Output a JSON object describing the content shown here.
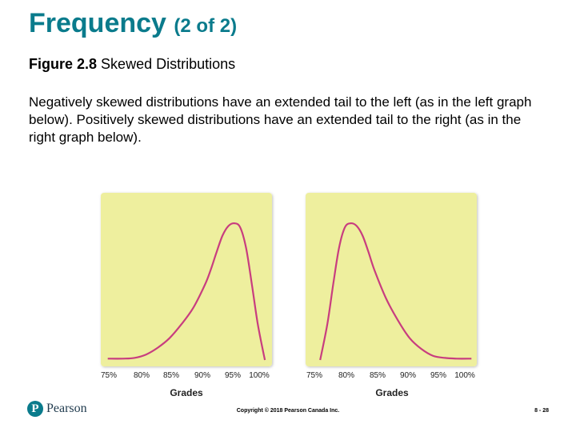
{
  "slide": {
    "title": "Frequency",
    "title_suffix": "(2 of 2)",
    "figure_label": "Figure 2.8",
    "figure_title": "Skewed Distributions",
    "body": "Negatively skewed distributions have an extended tail to the left (as in the left graph below). Positively skewed distributions have an extended tail to the right (as in the right graph below)."
  },
  "colors": {
    "title": "#0a7b8c",
    "panel": "#eeef9e",
    "curve": "#c83d7f"
  },
  "chart_data": [
    {
      "type": "line",
      "xlabel": "Grades",
      "x_ticks": [
        "75%",
        "80%",
        "85%",
        "90%",
        "95%",
        "100%"
      ],
      "xlim": [
        73,
        101
      ],
      "ylim": [
        0,
        1.1
      ],
      "series": [
        {
          "x": [
            73.5,
            76,
            78,
            80,
            82,
            84,
            86,
            88,
            90,
            91,
            92,
            93,
            94,
            95,
            96,
            97,
            98,
            99,
            100.2
          ],
          "y": [
            0.01,
            0.01,
            0.015,
            0.04,
            0.09,
            0.16,
            0.26,
            0.38,
            0.55,
            0.66,
            0.79,
            0.91,
            0.98,
            1.0,
            0.97,
            0.82,
            0.55,
            0.26,
            0.0
          ]
        }
      ]
    },
    {
      "type": "line",
      "xlabel": "Grades",
      "x_ticks": [
        "75%",
        "80%",
        "85%",
        "90%",
        "95%",
        "100%"
      ],
      "xlim": [
        73,
        101
      ],
      "ylim": [
        0,
        1.1
      ],
      "series": [
        {
          "x": [
            74.8,
            76,
            77,
            78,
            79,
            80,
            81,
            82,
            83,
            84,
            86,
            88,
            90,
            92,
            94,
            96,
            98,
            100.5
          ],
          "y": [
            0.0,
            0.26,
            0.55,
            0.82,
            0.97,
            1.0,
            0.98,
            0.91,
            0.79,
            0.66,
            0.45,
            0.29,
            0.16,
            0.08,
            0.03,
            0.015,
            0.01,
            0.01
          ]
        }
      ]
    }
  ],
  "footer": {
    "logo_mark": "P",
    "logo_text": "Pearson",
    "copyright": "Copyright © 2018 Pearson Canada Inc.",
    "page": "8 - 28"
  }
}
